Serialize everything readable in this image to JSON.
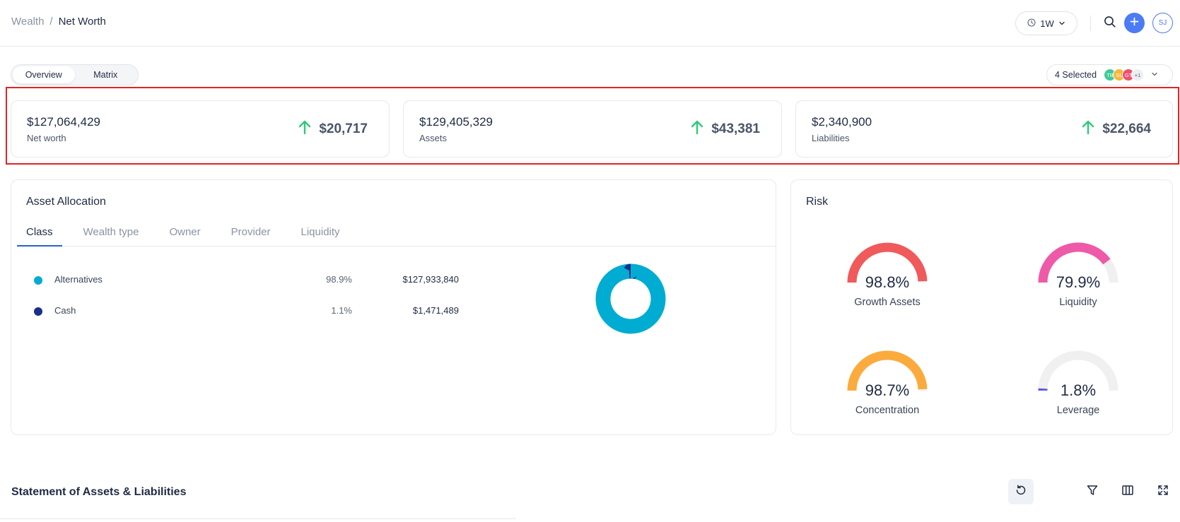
{
  "breadcrumb": {
    "root": "Wealth",
    "separator": "/",
    "current": "Net Worth"
  },
  "header": {
    "range": "1W",
    "user_initials": "SJ"
  },
  "view_toggle": {
    "options": [
      "Overview",
      "Matrix"
    ],
    "active": "Overview"
  },
  "owners": {
    "label": "4 Selected",
    "avatars": [
      {
        "initials": "TB",
        "color": "#3fc99a"
      },
      {
        "initials": "SL",
        "color": "#f5b83d"
      },
      {
        "initials": "GT",
        "color": "#f0506e"
      }
    ],
    "more": "+1"
  },
  "kpis": [
    {
      "value": "$127,064,429",
      "label": "Net worth",
      "change": "$20,717"
    },
    {
      "value": "$129,405,329",
      "label": "Assets",
      "change": "$43,381"
    },
    {
      "value": "$2,340,900",
      "label": "Liabilities",
      "change": "$22,664"
    }
  ],
  "allocation": {
    "title": "Asset Allocation",
    "tabs": [
      "Class",
      "Wealth type",
      "Owner",
      "Provider",
      "Liquidity"
    ],
    "active_tab": "Class",
    "rows": [
      {
        "name": "Alternatives",
        "pct": "98.9%",
        "value": "$127,933,840",
        "color": "#00acd1"
      },
      {
        "name": "Cash",
        "pct": "1.1%",
        "value": "$1,471,489",
        "color": "#1a2f8a"
      }
    ]
  },
  "chart_data": {
    "type": "pie",
    "categories": [
      "Alternatives",
      "Cash"
    ],
    "values": [
      98.9,
      1.1
    ],
    "colors": [
      "#00acd1",
      "#1a2f8a"
    ]
  },
  "risk": {
    "title": "Risk",
    "gauges": [
      {
        "value": "98.8%",
        "fraction": 0.988,
        "label": "Growth Assets",
        "color": "#f05a5a"
      },
      {
        "value": "79.9%",
        "fraction": 0.799,
        "label": "Liquidity",
        "color": "#ee5aa8"
      },
      {
        "value": "98.7%",
        "fraction": 0.987,
        "label": "Concentration",
        "color": "#fbab3d"
      },
      {
        "value": "1.8%",
        "fraction": 0.018,
        "label": "Leverage",
        "color": "#5b5be0"
      }
    ]
  },
  "statement": {
    "title": "Statement of Assets & Liabilities"
  },
  "icons": {
    "clock": "clock-icon",
    "chevron": "chevron-down-icon",
    "search": "search-icon",
    "plus": "plus-icon",
    "arrow_up": "arrow-up-icon",
    "reset": "reset-icon",
    "filter": "filter-icon",
    "columns": "columns-icon",
    "expand": "expand-icon"
  }
}
